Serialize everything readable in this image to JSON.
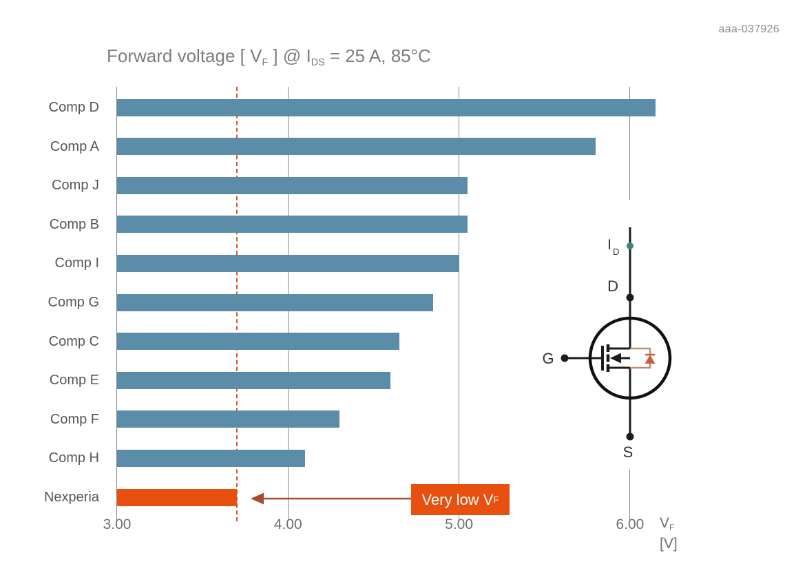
{
  "meta": {
    "doc_id": "aaa-037926"
  },
  "title": {
    "prefix": "Forward voltage [ V",
    "sub1": "F",
    "mid": " ] @ I",
    "sub2": "DS",
    "suffix": " = 25 A, 85°C"
  },
  "chart_data": {
    "type": "bar",
    "orientation": "horizontal",
    "title": "Forward voltage [VF] @ IDS = 25 A, 85°C",
    "xlabel": "VF [V]",
    "categories": [
      "Comp D",
      "Comp A",
      "Comp J",
      "Comp B",
      "Comp I",
      "Comp G",
      "Comp C",
      "Comp E",
      "Comp F",
      "Comp H",
      "Nexperia"
    ],
    "values": [
      6.15,
      5.8,
      5.05,
      5.05,
      5.0,
      4.85,
      4.65,
      4.6,
      4.3,
      4.1,
      3.7
    ],
    "xlim": [
      3.0,
      6.3
    ],
    "ticks": [
      3,
      4,
      5,
      6
    ],
    "tick_labels": [
      "3.00",
      "4.00",
      "5.00",
      "6.00"
    ],
    "grid": "vertical-lines",
    "marker_value": 3.7,
    "marker_style": "dashed-vertical-line",
    "bar_color": "#5b8da8",
    "highlight_category": "Nexperia",
    "highlight_color": "#e8500f",
    "annotation": "Very low VF"
  },
  "axis_title": {
    "symbol": "V",
    "sub": "F",
    "unit": "[V]"
  },
  "callout": {
    "text": "Very low V",
    "sub": "F"
  },
  "circuit": {
    "current_label": "I",
    "current_sub": "D",
    "drain_label": "D",
    "gate_label": "G",
    "source_label": "S"
  },
  "colors": {
    "bar": "#5b8da8",
    "accent": "#e8500f",
    "arrow": "#aa4a2e",
    "grid": "#868686",
    "marker": "#d6552b",
    "teal_dot": "#3e8576",
    "diode_line": "#c08a6e",
    "diode_fill": "#c75f41"
  }
}
